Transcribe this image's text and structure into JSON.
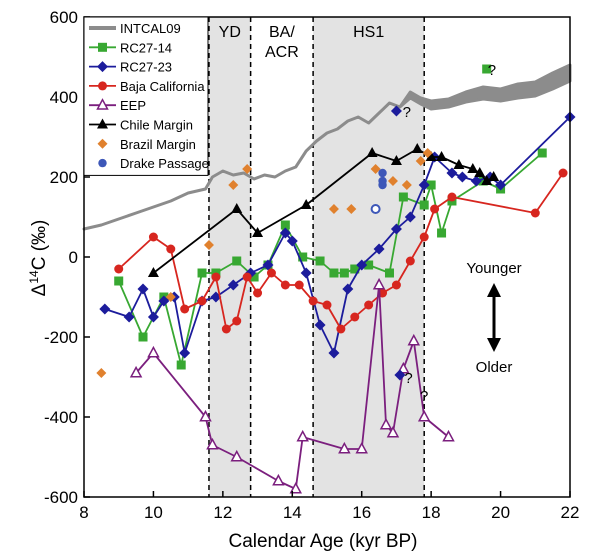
{
  "chart_data": {
    "type": "line",
    "title": "",
    "xlabel": "Calendar Age (kyr BP)",
    "ylabel": {
      "delta": "Δ",
      "sup": "14",
      "rest": "C (‰)"
    },
    "xlim": [
      8,
      22
    ],
    "ylim": [
      -600,
      600
    ],
    "xticks": [
      8,
      10,
      12,
      14,
      16,
      18,
      20,
      22
    ],
    "yticks": [
      -600,
      -400,
      -200,
      0,
      200,
      400,
      600
    ],
    "grid": false,
    "legend_placement": "top-left",
    "intervals": [
      {
        "label": "YD",
        "label2": "",
        "start": 11.6,
        "end": 12.8,
        "shaded": true
      },
      {
        "label": "BA/",
        "label2": "ACR",
        "start": 12.8,
        "end": 14.6,
        "shaded": false
      },
      {
        "label": "HS1",
        "label2": "",
        "start": 14.6,
        "end": 17.8,
        "shaded": true
      }
    ],
    "annotations": {
      "younger": "Younger",
      "older": "Older",
      "question_marks": [
        {
          "text": "?",
          "x": 19.75,
          "y": 470
        },
        {
          "text": "?",
          "x": 17.3,
          "y": 365
        },
        {
          "text": "?",
          "x": 17.35,
          "y": -300
        },
        {
          "text": "?",
          "x": 17.8,
          "y": -345
        }
      ]
    },
    "series": [
      {
        "name": "INTCAL09",
        "color": "#8c8c8c",
        "style": "band",
        "x": [
          8.0,
          8.5,
          9.0,
          9.5,
          10.0,
          10.5,
          11.0,
          11.5,
          11.7,
          12.0,
          12.3,
          12.6,
          12.9,
          13.2,
          13.5,
          13.8,
          14.1,
          14.4,
          14.7,
          15.0,
          15.3,
          15.6,
          15.9,
          16.2,
          16.5,
          16.8,
          17.1,
          17.4,
          17.7,
          18.0,
          18.5,
          19.0,
          19.5,
          20.0,
          20.5,
          21.0,
          21.5,
          22.0
        ],
        "y": [
          70,
          80,
          95,
          110,
          125,
          140,
          160,
          170,
          200,
          215,
          205,
          210,
          195,
          205,
          200,
          215,
          225,
          265,
          290,
          310,
          320,
          340,
          350,
          335,
          360,
          385,
          375,
          405,
          390,
          380,
          385,
          400,
          410,
          405,
          415,
          420,
          440,
          460
        ],
        "width": [
          0,
          0,
          0,
          0,
          0,
          0,
          0,
          0,
          0,
          0,
          0,
          0,
          0,
          0,
          0,
          0,
          0,
          0,
          0,
          0,
          0,
          0,
          0,
          0,
          0,
          0,
          0,
          15,
          15,
          20,
          20,
          25,
          30,
          30,
          35,
          35,
          40,
          40
        ]
      },
      {
        "name": "RC27-14",
        "color": "#38a832",
        "marker": "square",
        "x": [
          9.0,
          9.7,
          10.3,
          10.8,
          11.4,
          11.8,
          12.4,
          12.9,
          13.3,
          13.8,
          14.3,
          14.8,
          15.2,
          15.5,
          15.8,
          16.2,
          16.8,
          17.2,
          17.8,
          18.0,
          18.3,
          18.6,
          19.5,
          20.0,
          21.2
        ],
        "y": [
          -60,
          -200,
          -100,
          -270,
          -40,
          -40,
          -10,
          -50,
          -20,
          80,
          0,
          -10,
          -40,
          -40,
          -30,
          -20,
          -40,
          150,
          130,
          180,
          60,
          140,
          190,
          170,
          260
        ]
      },
      {
        "name": "RC27-23",
        "color": "#1c1c9c",
        "marker": "diamond",
        "x": [
          8.6,
          9.3,
          9.7,
          10.0,
          10.3,
          10.6,
          10.9,
          11.4,
          11.8,
          12.3,
          12.8,
          13.3,
          13.8,
          14.0,
          14.4,
          14.8,
          15.2,
          15.6,
          16.0,
          16.5,
          17.0,
          17.4,
          17.8,
          18.1,
          18.6,
          18.9,
          19.3,
          19.7,
          20.0,
          22.0
        ],
        "y": [
          -130,
          -150,
          -80,
          -150,
          -110,
          -100,
          -240,
          -110,
          -100,
          -70,
          -40,
          -20,
          60,
          40,
          -40,
          -170,
          -240,
          -80,
          -20,
          20,
          70,
          100,
          180,
          250,
          210,
          200,
          190,
          200,
          180,
          350
        ]
      },
      {
        "name": "Baja California",
        "color": "#d7261f",
        "marker": "circle",
        "x": [
          9.0,
          10.0,
          10.5,
          10.9,
          11.4,
          11.8,
          12.1,
          12.4,
          12.7,
          13.0,
          13.4,
          13.8,
          14.2,
          14.6,
          15.0,
          15.4,
          15.8,
          16.2,
          16.6,
          17.0,
          17.4,
          17.8,
          18.1,
          18.6,
          21.0,
          21.8
        ],
        "y": [
          -30,
          50,
          20,
          -130,
          -110,
          -50,
          -180,
          -160,
          -50,
          -90,
          -40,
          -70,
          -70,
          -110,
          -120,
          -180,
          -150,
          -120,
          -90,
          -70,
          -10,
          50,
          120,
          150,
          110,
          210
        ]
      },
      {
        "name": "EEP",
        "color": "#7b1f7e",
        "marker": "triangle-open",
        "x": [
          9.5,
          10.0,
          11.5,
          11.7,
          12.4,
          13.6,
          14.1,
          14.3,
          15.5,
          16.0,
          16.5,
          16.7,
          16.9,
          17.2,
          17.5,
          17.8,
          18.5
        ],
        "y": [
          -290,
          -240,
          -400,
          -470,
          -500,
          -560,
          -580,
          -450,
          -480,
          -480,
          -70,
          -420,
          -440,
          -280,
          -210,
          -400,
          -450
        ]
      },
      {
        "name": "Chile Margin",
        "color": "#000000",
        "marker": "triangle",
        "x": [
          10.0,
          12.4,
          13.0,
          14.4,
          16.3,
          17.0,
          17.6,
          18.0,
          18.3,
          18.8,
          19.2,
          19.4,
          19.6,
          19.8
        ],
        "y": [
          -40,
          120,
          60,
          130,
          260,
          240,
          270,
          250,
          250,
          230,
          220,
          210,
          190,
          200
        ]
      },
      {
        "name": "Brazil Margin",
        "color": "#e0812e",
        "marker": "diamond-small",
        "connected": false,
        "x": [
          8.5,
          10.5,
          11.6,
          12.3,
          12.7,
          15.2,
          15.7,
          16.4,
          16.9,
          17.3,
          17.7,
          17.9
        ],
        "y": [
          -290,
          -100,
          30,
          180,
          220,
          120,
          120,
          220,
          190,
          180,
          240,
          260
        ]
      },
      {
        "name": "Drake Passage",
        "color": "#3d57b8",
        "marker": "circle-small",
        "connected": false,
        "x": [
          16.6,
          16.6,
          16.6,
          16.4
        ],
        "y": [
          210,
          190,
          180,
          120
        ]
      }
    ],
    "extra_points": [
      {
        "series": "RC27-14",
        "x": 19.6,
        "y": 470,
        "marker": "square"
      },
      {
        "series": "RC27-23",
        "x": 17.0,
        "y": 365,
        "marker": "diamond"
      },
      {
        "series": "RC27-23",
        "x": 17.1,
        "y": -295,
        "marker": "diamond"
      },
      {
        "series": "Drake Passage",
        "x": 16.4,
        "y": 120,
        "marker": "circle-open"
      }
    ]
  }
}
